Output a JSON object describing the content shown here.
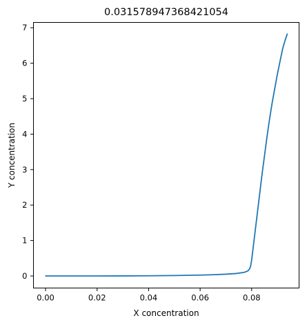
{
  "chart_data": {
    "type": "line",
    "title": "0.031578947368421054",
    "xlabel": "X concentration",
    "ylabel": "Y concentration",
    "xlim": [
      -0.0047,
      0.0984
    ],
    "ylim": [
      -0.34,
      7.15
    ],
    "xticks": [
      0.0,
      0.02,
      0.04,
      0.06,
      0.08
    ],
    "xtick_labels": [
      "0.00",
      "0.02",
      "0.04",
      "0.06",
      "0.08"
    ],
    "yticks": [
      0,
      1,
      2,
      3,
      4,
      5,
      6,
      7
    ],
    "ytick_labels": [
      "0",
      "1",
      "2",
      "3",
      "4",
      "5",
      "6",
      "7"
    ],
    "grid": false,
    "series": [
      {
        "color": "#1f77b4",
        "x": [
          0.0,
          0.01,
          0.02,
          0.03,
          0.04,
          0.05,
          0.06,
          0.065,
          0.07,
          0.074,
          0.077,
          0.0785,
          0.0792,
          0.0796,
          0.08,
          0.0805,
          0.081,
          0.082,
          0.083,
          0.084,
          0.085,
          0.086,
          0.087,
          0.088,
          0.089,
          0.09,
          0.091,
          0.092,
          0.093,
          0.0938
        ],
        "y": [
          0.0,
          0.0,
          0.0,
          0.002,
          0.005,
          0.012,
          0.025,
          0.035,
          0.05,
          0.07,
          0.1,
          0.14,
          0.2,
          0.28,
          0.45,
          0.75,
          1.05,
          1.65,
          2.25,
          2.85,
          3.4,
          3.95,
          4.45,
          4.9,
          5.3,
          5.7,
          6.05,
          6.4,
          6.65,
          6.82
        ]
      }
    ]
  }
}
